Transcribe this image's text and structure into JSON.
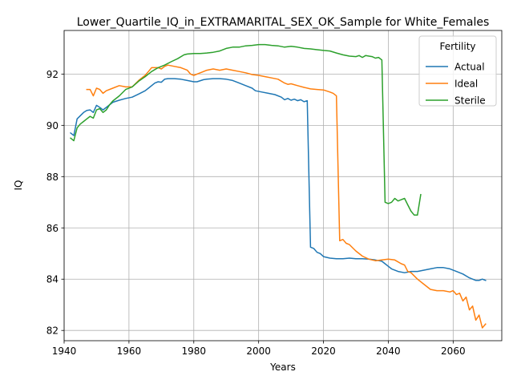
{
  "chart_data": {
    "type": "line",
    "title": "Lower_Quartile_IQ_in_EXTRAMARITAL_SEX_OK_Sample for White_Females",
    "xlabel": "Years",
    "ylabel": "IQ",
    "xlim": [
      1940,
      2075
    ],
    "ylim": [
      81.6,
      93.7
    ],
    "xticks": [
      1940,
      1960,
      1980,
      2000,
      2020,
      2040,
      2060
    ],
    "yticks": [
      82,
      84,
      86,
      88,
      90,
      92
    ],
    "grid": true,
    "legend": {
      "title": "Fertility",
      "position": "top-right"
    },
    "series": [
      {
        "name": "Actual",
        "color": "#1f77b4",
        "x": [
          1942,
          1943,
          1944,
          1946,
          1947,
          1948,
          1949,
          1950,
          1951,
          1952,
          1953,
          1955,
          1957,
          1959,
          1961,
          1963,
          1965,
          1966,
          1968,
          1969,
          1970,
          1971,
          1972,
          1974,
          1976,
          1978,
          1980,
          1981,
          1983,
          1984,
          1986,
          1988,
          1990,
          1992,
          1994,
          1996,
          1998,
          1999,
          2001,
          2003,
          2005,
          2007,
          2008,
          2009,
          2010,
          2011,
          2012,
          2013,
          2014,
          2015,
          2016,
          2017,
          2018,
          2019,
          2020,
          2022,
          2024,
          2026,
          2028,
          2030,
          2032,
          2034,
          2036,
          2038,
          2039,
          2040,
          2041,
          2043,
          2045,
          2047,
          2049,
          2051,
          2053,
          2055,
          2057,
          2059,
          2061,
          2063,
          2065,
          2067,
          2068,
          2069,
          2070
        ],
        "values": [
          89.7,
          89.6,
          90.25,
          90.5,
          90.58,
          90.6,
          90.5,
          90.78,
          90.7,
          90.6,
          90.7,
          90.9,
          90.98,
          91.05,
          91.1,
          91.22,
          91.35,
          91.45,
          91.65,
          91.7,
          91.68,
          91.8,
          91.82,
          91.82,
          91.8,
          91.75,
          91.7,
          91.7,
          91.78,
          91.8,
          91.82,
          91.82,
          91.8,
          91.75,
          91.65,
          91.55,
          91.45,
          91.35,
          91.3,
          91.25,
          91.2,
          91.1,
          91.0,
          91.05,
          90.98,
          91.02,
          90.96,
          91.0,
          90.92,
          90.96,
          85.25,
          85.2,
          85.05,
          85.0,
          84.88,
          84.82,
          84.8,
          84.8,
          84.82,
          84.8,
          84.8,
          84.78,
          84.75,
          84.7,
          84.6,
          84.5,
          84.4,
          84.3,
          84.25,
          84.3,
          84.3,
          84.35,
          84.4,
          84.45,
          84.45,
          84.4,
          84.3,
          84.2,
          84.05,
          83.95,
          83.95,
          84.0,
          83.95
        ]
      },
      {
        "name": "Ideal",
        "color": "#ff7f0e",
        "x": [
          1947,
          1948,
          1949,
          1950,
          1951,
          1952,
          1953,
          1955,
          1957,
          1959,
          1961,
          1963,
          1965,
          1966,
          1967,
          1969,
          1970,
          1971,
          1972,
          1974,
          1976,
          1978,
          1979,
          1980,
          1982,
          1984,
          1986,
          1988,
          1990,
          1992,
          1994,
          1996,
          1998,
          2000,
          2002,
          2004,
          2006,
          2008,
          2009,
          2010,
          2012,
          2014,
          2016,
          2018,
          2020,
          2022,
          2023,
          2024,
          2025,
          2026,
          2027,
          2028,
          2030,
          2032,
          2034,
          2036,
          2038,
          2040,
          2042,
          2044,
          2045,
          2046,
          2047,
          2049,
          2051,
          2053,
          2055,
          2057,
          2059,
          2060,
          2061,
          2062,
          2063,
          2064,
          2065,
          2066,
          2067,
          2068,
          2069,
          2070
        ],
        "values": [
          91.4,
          91.4,
          91.15,
          91.45,
          91.4,
          91.25,
          91.35,
          91.45,
          91.55,
          91.5,
          91.5,
          91.75,
          91.95,
          92.1,
          92.25,
          92.25,
          92.2,
          92.3,
          92.35,
          92.3,
          92.25,
          92.15,
          92.0,
          91.95,
          92.05,
          92.15,
          92.2,
          92.15,
          92.2,
          92.15,
          92.1,
          92.05,
          91.98,
          91.95,
          91.9,
          91.85,
          91.8,
          91.65,
          91.6,
          91.62,
          91.55,
          91.48,
          91.42,
          91.4,
          91.38,
          91.3,
          91.25,
          91.15,
          85.5,
          85.55,
          85.4,
          85.35,
          85.1,
          84.9,
          84.78,
          84.72,
          84.75,
          84.78,
          84.75,
          84.6,
          84.55,
          84.3,
          84.25,
          84.0,
          83.8,
          83.6,
          83.55,
          83.55,
          83.5,
          83.55,
          83.4,
          83.45,
          83.15,
          83.3,
          82.8,
          82.95,
          82.4,
          82.6,
          82.1,
          82.25
        ]
      },
      {
        "name": "Sterile",
        "color": "#2ca02c",
        "x": [
          1942,
          1943,
          1944,
          1945,
          1946,
          1947,
          1948,
          1949,
          1950,
          1951,
          1952,
          1953,
          1954,
          1955,
          1957,
          1959,
          1961,
          1963,
          1965,
          1967,
          1969,
          1971,
          1973,
          1975,
          1977,
          1978,
          1980,
          1982,
          1984,
          1986,
          1988,
          1990,
          1992,
          1994,
          1996,
          1998,
          2000,
          2002,
          2004,
          2006,
          2008,
          2010,
          2012,
          2014,
          2016,
          2018,
          2020,
          2022,
          2024,
          2026,
          2028,
          2030,
          2031,
          2032,
          2033,
          2034,
          2035,
          2036,
          2037,
          2038,
          2039,
          2040,
          2041,
          2042,
          2043,
          2044,
          2045,
          2046,
          2047,
          2048,
          2049,
          2050
        ],
        "values": [
          89.5,
          89.4,
          89.9,
          90.05,
          90.15,
          90.25,
          90.35,
          90.28,
          90.6,
          90.65,
          90.5,
          90.6,
          90.8,
          90.95,
          91.15,
          91.4,
          91.5,
          91.72,
          91.9,
          92.1,
          92.25,
          92.35,
          92.48,
          92.6,
          92.75,
          92.78,
          92.8,
          92.8,
          92.82,
          92.85,
          92.9,
          93.0,
          93.05,
          93.05,
          93.1,
          93.12,
          93.15,
          93.15,
          93.12,
          93.1,
          93.05,
          93.08,
          93.05,
          93.0,
          92.98,
          92.95,
          92.92,
          92.9,
          92.82,
          92.75,
          92.7,
          92.68,
          92.72,
          92.65,
          92.72,
          92.7,
          92.68,
          92.62,
          92.65,
          92.55,
          87.0,
          86.95,
          87.0,
          87.15,
          87.05,
          87.1,
          87.15,
          86.9,
          86.65,
          86.5,
          86.5,
          87.3
        ]
      }
    ]
  }
}
